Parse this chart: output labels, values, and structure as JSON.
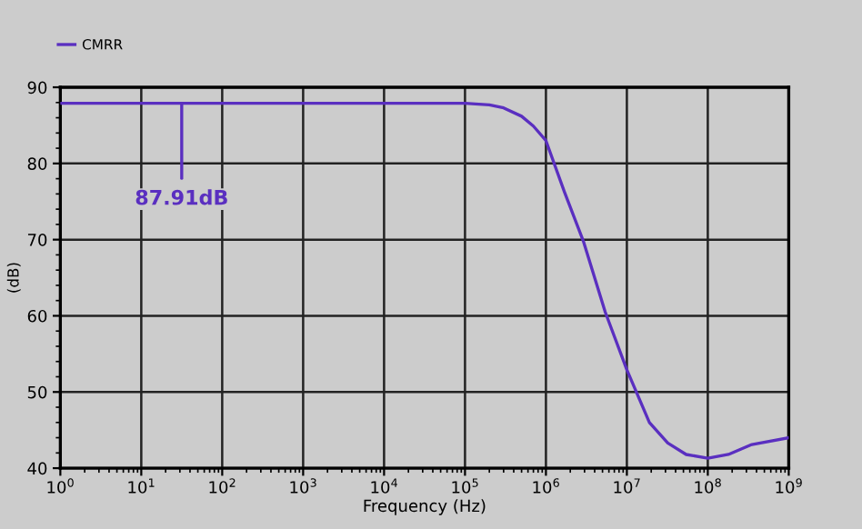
{
  "chart_data": {
    "type": "line",
    "xlabel": "Frequency (Hz)",
    "ylabel": "(dB)",
    "x": [
      1,
      10,
      100,
      1000,
      10000,
      100000,
      200000,
      300000,
      500000,
      700000,
      1000000,
      1700000,
      2900000,
      5400000,
      10000000,
      19000000,
      32000000,
      54000000,
      100000000,
      180000000,
      350000000,
      1000000000
    ],
    "series": [
      {
        "name": "CMRR",
        "color": "#5a2fc0",
        "values": [
          87.9,
          87.9,
          87.9,
          87.9,
          87.9,
          87.9,
          87.7,
          87.3,
          86.2,
          84.9,
          83.0,
          76.2,
          69.8,
          60.5,
          52.9,
          46.0,
          43.3,
          41.8,
          41.3,
          41.8,
          43.1,
          44.0
        ]
      }
    ],
    "xlim": [
      1,
      1000000000
    ],
    "ylim": [
      40,
      90
    ],
    "xticks": [
      {
        "value": 1,
        "label": "10$^{0}$"
      },
      {
        "value": 10,
        "label": "10$^{1}$"
      },
      {
        "value": 100,
        "label": "10$^{2}$"
      },
      {
        "value": 1000,
        "label": "10$^{3}$"
      },
      {
        "value": 10000,
        "label": "10$^{4}$"
      },
      {
        "value": 100000,
        "label": "10$^{5}$"
      },
      {
        "value": 1000000,
        "label": "10$^{6}$"
      },
      {
        "value": 10000000,
        "label": "10$^{7}$"
      },
      {
        "value": 100000000,
        "label": "10$^{8}$"
      },
      {
        "value": 1000000000,
        "label": "10$^{9}$"
      }
    ],
    "yticks": [
      40,
      50,
      60,
      70,
      80,
      90
    ],
    "log": "x",
    "grid": true,
    "legend": "top left",
    "annotations": [
      {
        "text": "87.91dB",
        "x": 31.6,
        "y": 87.91
      }
    ]
  }
}
